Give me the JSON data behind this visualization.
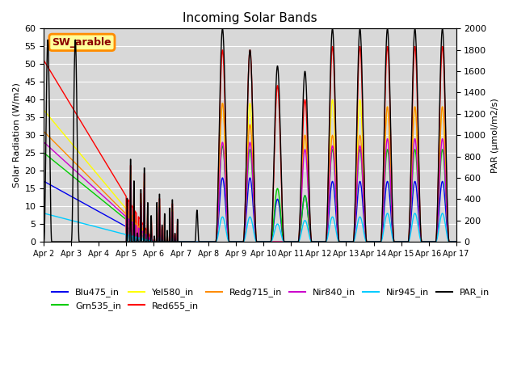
{
  "title": "Incoming Solar Bands",
  "ylabel_left": "Solar Radiation (W/m2)",
  "ylabel_right": "PAR (μmol/m2/s)",
  "ylim_left": [
    0,
    60
  ],
  "ylim_right": [
    0,
    2000
  ],
  "annotation_text": "SW_arable",
  "annotation_color": "#8B0000",
  "annotation_bg": "#FFFF99",
  "annotation_border": "#FF8C00",
  "bg_color": "#D8D8D8",
  "series": {
    "Blu475_in": {
      "color": "#0000EE",
      "lw": 1.0
    },
    "Grn535_in": {
      "color": "#00CC00",
      "lw": 1.0
    },
    "Yel580_in": {
      "color": "#FFFF00",
      "lw": 1.0
    },
    "Red655_in": {
      "color": "#FF0000",
      "lw": 1.0
    },
    "Redg715_in": {
      "color": "#FF8C00",
      "lw": 1.0
    },
    "Nir840_in": {
      "color": "#CC00CC",
      "lw": 1.0
    },
    "Nir945_in": {
      "color": "#00CCFF",
      "lw": 1.0
    },
    "PAR_in": {
      "color": "#000000",
      "lw": 1.0
    }
  },
  "xtick_labels": [
    "Apr 2",
    "Apr 3",
    "Apr 4",
    "Apr 5",
    "Apr 6",
    "Apr 7",
    "Apr 8",
    "Apr 9",
    "Apr 10",
    "Apr 11",
    "Apr 12",
    "Apr 13",
    "Apr 14",
    "Apr 15",
    "Apr 16",
    "Apr 17"
  ],
  "yticks_left": [
    0,
    5,
    10,
    15,
    20,
    25,
    30,
    35,
    40,
    45,
    50,
    55,
    60
  ],
  "yticks_right": [
    0,
    200,
    400,
    600,
    800,
    1000,
    1200,
    1400,
    1600,
    1800,
    2000
  ]
}
